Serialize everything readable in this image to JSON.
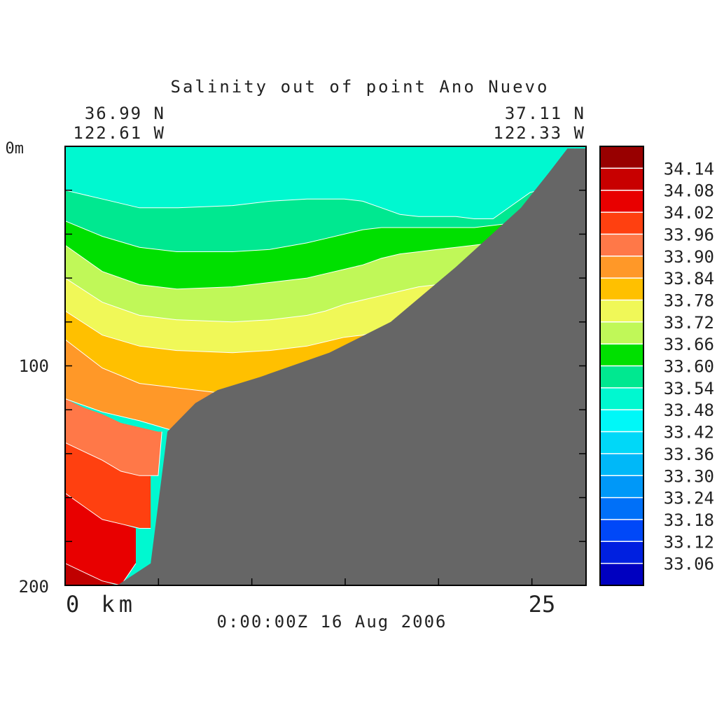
{
  "title": "Salinity out of point Ano Nuevo",
  "endpoints": {
    "left_lat": "36.99 N",
    "left_lon": "122.61 W",
    "right_lat": "37.11 N",
    "right_lon": "122.33 W"
  },
  "timestamp": "0:00:00Z  16 Aug 2006",
  "x_axis": {
    "start_label": "0 km",
    "mid_label": "25"
  },
  "y_axis": {
    "top_label": "0m",
    "mid_label": "100",
    "bottom_label": "200"
  },
  "colorbar": {
    "colors": [
      "#0000c0",
      "#0020e0",
      "#0048f8",
      "#0070f8",
      "#0098f8",
      "#00b8f8",
      "#00d8f8",
      "#00f8f8",
      "#00f8d0",
      "#00e890",
      "#00e000",
      "#c0f858",
      "#f0f858",
      "#ffc000",
      "#ff9828",
      "#ff7848",
      "#ff4010",
      "#e80000",
      "#c80000",
      "#980000"
    ],
    "labels": [
      "34.14",
      "34.08",
      "34.02",
      "33.96",
      "33.90",
      "33.84",
      "33.78",
      "33.72",
      "33.66",
      "33.60",
      "33.54",
      "33.48",
      "33.42",
      "33.36",
      "33.30",
      "33.24",
      "33.18",
      "33.12",
      "33.06"
    ]
  },
  "chart_data": {
    "type": "heatmap",
    "title": "Salinity out of point Ano Nuevo",
    "xlabel": "km",
    "ylabel": "m",
    "xlim": [
      0,
      28
    ],
    "ylim": [
      200,
      0
    ],
    "x_ticks": [
      0,
      25
    ],
    "y_ticks": [
      0,
      100,
      200
    ],
    "levels": [
      33.06,
      33.12,
      33.18,
      33.24,
      33.3,
      33.36,
      33.42,
      33.48,
      33.54,
      33.6,
      33.66,
      33.72,
      33.78,
      33.84,
      33.9,
      33.96,
      34.02,
      34.08,
      34.14
    ],
    "bathymetry": {
      "x_km": [
        2.8,
        4.6,
        5.5,
        7,
        8.2,
        10.5,
        14.2,
        17.5,
        21,
        24.5,
        26,
        27,
        28
      ],
      "depth_m": [
        200,
        190,
        130,
        117,
        111,
        105,
        94,
        80,
        55,
        28,
        12,
        1,
        1
      ]
    },
    "bands": [
      {
        "level_from": 33.48,
        "level_to": 33.54,
        "color": "#00f8d0",
        "x_km": [
          0,
          2,
          4,
          6,
          9,
          11,
          13,
          14,
          15,
          16,
          17,
          18,
          19,
          20,
          21,
          22,
          23,
          24,
          25,
          26,
          27,
          27.4
        ],
        "top_depth_m": [
          0,
          0,
          0,
          0,
          0,
          0,
          0,
          0,
          0,
          0,
          0,
          0,
          0,
          0,
          0,
          0,
          0,
          0,
          0,
          0,
          0,
          0
        ],
        "bottom_depth_m": [
          20,
          24,
          28,
          28,
          27,
          25,
          24,
          24,
          24,
          25,
          28,
          31,
          32,
          32,
          32,
          33,
          33,
          27,
          21,
          19,
          12,
          1
        ]
      },
      {
        "level_from": 33.54,
        "level_to": 33.6,
        "color": "#00e890",
        "x_km": [
          0,
          2,
          4,
          6,
          9,
          11,
          13,
          14,
          15,
          16,
          17,
          18,
          19,
          20,
          21,
          22,
          23,
          24,
          25,
          26,
          27,
          27.4
        ],
        "top_depth_m": [
          20,
          24,
          28,
          28,
          27,
          25,
          24,
          24,
          24,
          25,
          28,
          31,
          32,
          32,
          32,
          33,
          33,
          27,
          21,
          19,
          12,
          1
        ],
        "bottom_depth_m": [
          34,
          41,
          46,
          48,
          48,
          47,
          44,
          42,
          40,
          38,
          37,
          37,
          37,
          37,
          37,
          37,
          36,
          35,
          31,
          24,
          12,
          1
        ]
      },
      {
        "level_from": 33.6,
        "level_to": 33.66,
        "color": "#00e000",
        "x_km": [
          0,
          2,
          4,
          6,
          9,
          11,
          13,
          14,
          15,
          16,
          17,
          18,
          19,
          20,
          21,
          22,
          23,
          24,
          25,
          26,
          27,
          27.4
        ],
        "top_depth_m": [
          34,
          41,
          46,
          48,
          48,
          47,
          44,
          42,
          40,
          38,
          37,
          37,
          37,
          37,
          37,
          37,
          36,
          35,
          31,
          24,
          12,
          1
        ],
        "bottom_depth_m": [
          45,
          57,
          63,
          65,
          64,
          62,
          60,
          58,
          56,
          54,
          51,
          49,
          48,
          47,
          46,
          45,
          44,
          45,
          45,
          24,
          12,
          1
        ]
      },
      {
        "level_from": 33.66,
        "level_to": 33.72,
        "color": "#c0f858",
        "x_km": [
          0,
          2,
          4,
          6,
          9,
          11,
          13,
          14,
          15,
          16,
          17,
          18,
          19,
          20,
          21,
          22,
          23,
          24,
          25,
          26,
          27,
          27.4
        ],
        "top_depth_m": [
          45,
          57,
          63,
          65,
          64,
          62,
          60,
          58,
          56,
          54,
          51,
          49,
          48,
          47,
          46,
          45,
          44,
          45,
          45,
          24,
          12,
          1
        ],
        "bottom_depth_m": [
          60,
          71,
          77,
          79,
          80,
          79,
          77,
          75,
          72,
          70,
          68,
          66,
          64,
          63,
          63,
          64,
          64,
          45,
          45,
          24,
          12,
          1
        ]
      },
      {
        "level_from": 33.72,
        "level_to": 33.78,
        "color": "#f0f858",
        "x_km": [
          0,
          2,
          4,
          6,
          9,
          11,
          13,
          14,
          15,
          16,
          17,
          18,
          19,
          20,
          21,
          22,
          23,
          24,
          25,
          26,
          27,
          27.4
        ],
        "top_depth_m": [
          60,
          71,
          77,
          79,
          80,
          79,
          77,
          75,
          72,
          70,
          68,
          66,
          64,
          63,
          63,
          64,
          64,
          45,
          45,
          24,
          12,
          1
        ],
        "bottom_depth_m": [
          75,
          86,
          91,
          93,
          94,
          93,
          91,
          89,
          87,
          86,
          84,
          82,
          80,
          78,
          77,
          77,
          64,
          45,
          45,
          24,
          12,
          1
        ]
      },
      {
        "level_from": 33.78,
        "level_to": 33.84,
        "color": "#ffc000",
        "x_km": [
          0,
          2,
          4,
          6,
          9,
          11,
          13,
          14,
          15,
          16,
          17,
          18,
          19,
          20,
          21,
          22,
          23,
          24,
          25,
          26,
          27,
          27.4
        ],
        "top_depth_m": [
          75,
          86,
          91,
          93,
          94,
          93,
          91,
          89,
          87,
          86,
          84,
          82,
          80,
          78,
          77,
          77,
          64,
          45,
          45,
          24,
          12,
          1
        ],
        "bottom_depth_m": [
          88,
          101,
          108,
          110,
          113,
          119,
          115,
          110,
          106,
          103,
          101,
          98,
          94,
          84,
          77,
          77,
          64,
          45,
          45,
          24,
          12,
          1
        ]
      },
      {
        "level_from": 33.84,
        "level_to": 33.9,
        "color": "#ff9828",
        "x_km": [
          0,
          2,
          4,
          6,
          9,
          11,
          13,
          14,
          15,
          16,
          17,
          18,
          19,
          20,
          21,
          22,
          23,
          24,
          25,
          26,
          27,
          27.4
        ],
        "top_depth_m": [
          88,
          101,
          108,
          110,
          113,
          119,
          115,
          110,
          106,
          103,
          101,
          98,
          94,
          84,
          77,
          77,
          64,
          45,
          45,
          24,
          12,
          1
        ],
        "bottom_depth_m": [
          115,
          121,
          125,
          130,
          130,
          119,
          115,
          110,
          106,
          103,
          101,
          98,
          94,
          84,
          77,
          77,
          64,
          45,
          45,
          24,
          12,
          1
        ]
      },
      {
        "level_from": 33.9,
        "level_to": 33.96,
        "color": "#ff7848",
        "x_km": [
          0,
          1,
          2,
          3,
          4,
          5,
          5.2
        ],
        "top_depth_m": [
          115,
          119,
          122,
          126,
          128,
          130,
          130
        ],
        "bottom_depth_m": [
          135,
          139,
          143,
          148,
          150,
          150,
          130
        ]
      },
      {
        "level_from": 33.96,
        "level_to": 34.02,
        "color": "#ff4010",
        "x_km": [
          0,
          1,
          2,
          3,
          4,
          4.6
        ],
        "top_depth_m": [
          135,
          139,
          143,
          148,
          150,
          150
        ],
        "bottom_depth_m": [
          158,
          164,
          170,
          172,
          174,
          174
        ]
      },
      {
        "level_from": 34.02,
        "level_to": 34.08,
        "color": "#e80000",
        "x_km": [
          0,
          1,
          2,
          3,
          3.8
        ],
        "top_depth_m": [
          158,
          164,
          170,
          172,
          174
        ],
        "bottom_depth_m": [
          190,
          194,
          198,
          200,
          190
        ]
      },
      {
        "level_from": 34.08,
        "level_to": 34.14,
        "color": "#c00000",
        "x_km": [
          0,
          1,
          2,
          2.8
        ],
        "top_depth_m": [
          190,
          194,
          198,
          200
        ],
        "bottom_depth_m": [
          200,
          200,
          200,
          200
        ]
      }
    ]
  }
}
